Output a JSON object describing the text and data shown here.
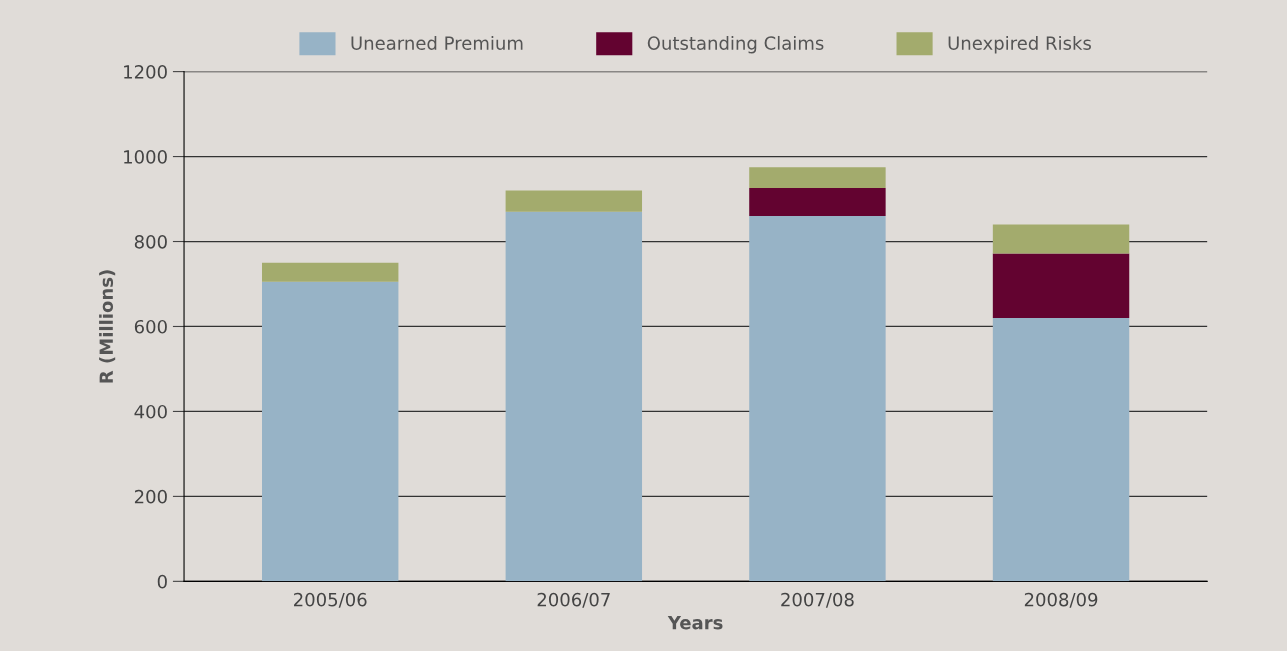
{
  "chart_data": {
    "type": "bar",
    "stacked": true,
    "xlabel": "Years",
    "ylabel": "R (Millions)",
    "categories": [
      "2005/06",
      "2006/07",
      "2007/08",
      "2008/09"
    ],
    "series": [
      {
        "name": "Unearned Premium",
        "color": "#97b3c6",
        "values": [
          705,
          870,
          860,
          620
        ]
      },
      {
        "name": "Outstanding Claims",
        "color": "#630330",
        "values": [
          null,
          null,
          66,
          152
        ]
      },
      {
        "name": "Unexpired Risks",
        "color": "#a3ab6d",
        "values": [
          45,
          50,
          49,
          68
        ]
      }
    ],
    "ylim": [
      0,
      1200
    ],
    "yticks": [
      0,
      200,
      400,
      600,
      800,
      1000,
      1200
    ],
    "grid": "y",
    "legend": "top"
  }
}
